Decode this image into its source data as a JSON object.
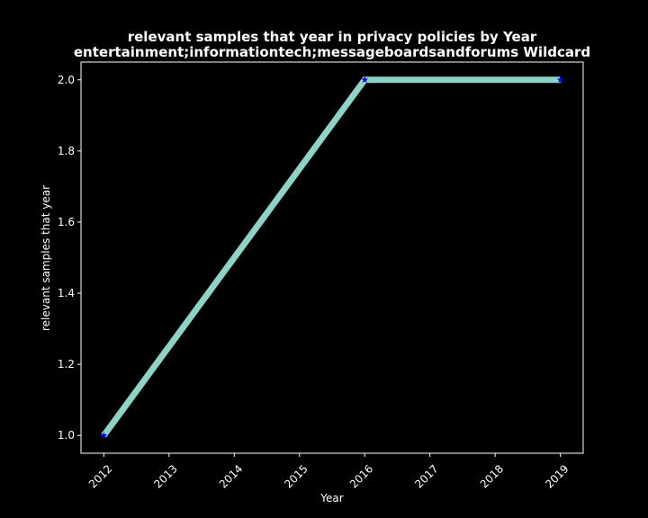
{
  "chart_data": {
    "type": "line",
    "title_line1": "relevant samples that year in privacy policies by Year",
    "title_line2": "entertainment;informationtech;messageboardsandforums Wildcard",
    "xlabel": "Year",
    "ylabel": "relevant samples that year",
    "x": [
      2012,
      2016,
      2019
    ],
    "y": [
      1.0,
      2.0,
      2.0
    ],
    "xlim": [
      2011.65,
      2019.35
    ],
    "ylim": [
      0.95,
      2.05
    ],
    "xticks": [
      "2012",
      "2013",
      "2014",
      "2015",
      "2016",
      "2017",
      "2018",
      "2019"
    ],
    "yticks": [
      "1.0",
      "1.2",
      "1.4",
      "1.6",
      "1.8",
      "2.0"
    ],
    "grid": false,
    "line_color": "#8dd3c7",
    "marker_color": "#0000ff",
    "marker": "star"
  }
}
